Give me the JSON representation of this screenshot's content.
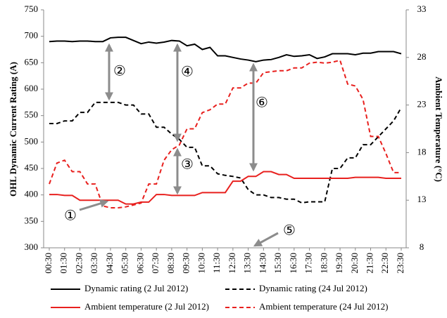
{
  "chart_data": {
    "type": "line",
    "ylabel": "OHL Dynamic Current Rating (A)",
    "y2label": "Ambient Temperature (°C)",
    "categories": [
      "00:30",
      null,
      "01:30",
      null,
      "02:30",
      null,
      "03:30",
      null,
      "04:30",
      null,
      "05:30",
      null,
      "06:30",
      null,
      "07:30",
      null,
      "08:30",
      null,
      "09:30",
      null,
      "10:30",
      null,
      "11:30",
      null,
      "12:30",
      null,
      "13:30",
      null,
      "14:30",
      null,
      "15:30",
      null,
      "16:30",
      null,
      "17:30",
      null,
      "18:30",
      null,
      "19:30",
      null,
      "20:30",
      null,
      "21:30",
      null,
      "22:30",
      null,
      "23:30"
    ],
    "ylim": [
      300,
      750
    ],
    "yticks": [
      300,
      350,
      400,
      450,
      500,
      550,
      600,
      650,
      700,
      750
    ],
    "y2lim": [
      8,
      33
    ],
    "y2ticks": [
      8,
      13,
      18,
      23,
      28,
      33
    ],
    "series": [
      {
        "name": "Dynamic rating (2 Jul 2012)",
        "color": "#000000",
        "line_style": "solid",
        "values": [
          690,
          691,
          691,
          690,
          691,
          691,
          690,
          690,
          697,
          698,
          698,
          692,
          686,
          689,
          687,
          689,
          692,
          691,
          682,
          685,
          675,
          679,
          663,
          663,
          660,
          657,
          655,
          652,
          655,
          656,
          660,
          665,
          662,
          663,
          665,
          658,
          661,
          667,
          667,
          667,
          665,
          668,
          668,
          671,
          671,
          671,
          667
        ]
      },
      {
        "name": "Dynamic rating (24 Jul 2012)",
        "color": "#000000",
        "line_style": "dashed",
        "values": [
          535,
          535,
          540,
          540,
          556,
          556,
          575,
          575,
          575,
          575,
          570,
          570,
          553,
          553,
          528,
          528,
          515,
          505,
          490,
          490,
          455,
          455,
          440,
          437,
          435,
          432,
          410,
          400,
          400,
          395,
          395,
          392,
          392,
          385,
          387,
          387,
          387,
          450,
          450,
          470,
          470,
          495,
          495,
          510,
          525,
          540,
          565
        ]
      },
      {
        "name": "Ambient temperature (2 Jul 2012)",
        "color": "#e8201e",
        "line_style": "solid",
        "axis": "y2",
        "values": [
          13.6,
          13.6,
          13.5,
          13.5,
          13.0,
          13.0,
          13.0,
          13.0,
          13.0,
          13.0,
          12.6,
          12.6,
          12.8,
          12.8,
          13.6,
          13.6,
          13.5,
          13.5,
          13.5,
          13.5,
          13.8,
          13.8,
          13.8,
          13.8,
          15.0,
          15.0,
          15.5,
          15.5,
          16.0,
          16.0,
          15.7,
          15.7,
          15.3,
          15.3,
          15.3,
          15.3,
          15.3,
          15.3,
          15.3,
          15.3,
          15.4,
          15.4,
          15.4,
          15.4,
          15.3,
          15.3,
          15.3
        ]
      },
      {
        "name": "Ambient temperature (24 Jul 2012)",
        "color": "#e8201e",
        "line_style": "dashed",
        "axis": "y2",
        "values": [
          14.7,
          16.9,
          17.2,
          16.0,
          16.0,
          14.7,
          14.7,
          12.4,
          12.2,
          12.2,
          12.3,
          12.5,
          12.7,
          14.7,
          14.7,
          17.2,
          18.3,
          18.8,
          20.5,
          20.5,
          22.2,
          22.5,
          23.1,
          23.1,
          24.8,
          24.8,
          25.3,
          25.3,
          26.4,
          26.5,
          26.6,
          26.6,
          26.9,
          26.9,
          27.4,
          27.5,
          27.4,
          27.5,
          27.7,
          25.2,
          25.0,
          23.6,
          19.7,
          19.7,
          17.9,
          15.9,
          15.9
        ]
      }
    ],
    "annotations": [
      "①",
      "②",
      "③",
      "④",
      "⑤",
      "⑥"
    ]
  }
}
